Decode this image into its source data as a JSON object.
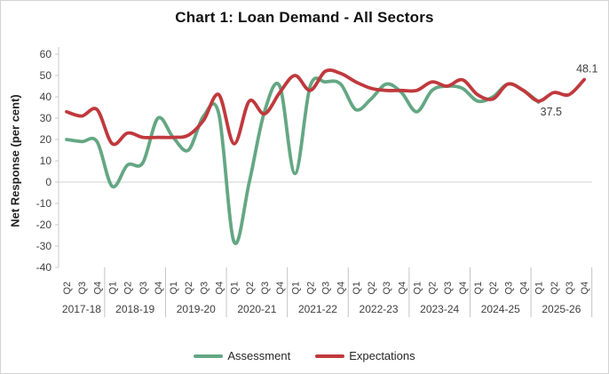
{
  "chart_data": {
    "type": "line",
    "title": "Chart 1: Loan Demand - All Sectors",
    "ylabel": "Net Response (per cent)",
    "ylim": [
      -40,
      60
    ],
    "y_ticks": [
      60,
      50,
      40,
      30,
      20,
      10,
      0,
      -10,
      -20,
      -30,
      -40
    ],
    "grid": "zero-line-only",
    "legend_position": "bottom",
    "x_quarter_labels": [
      "Q2",
      "Q3",
      "Q4",
      "Q1",
      "Q2",
      "Q3",
      "Q4",
      "Q1",
      "Q2",
      "Q3",
      "Q4",
      "Q1",
      "Q2",
      "Q3",
      "Q4",
      "Q1",
      "Q2",
      "Q3",
      "Q4",
      "Q1",
      "Q2",
      "Q3",
      "Q4",
      "Q1",
      "Q2",
      "Q3",
      "Q4",
      "Q1",
      "Q2",
      "Q3",
      "Q4",
      "Q1",
      "Q2",
      "Q3",
      "Q4"
    ],
    "x_year_groups": [
      {
        "label": "2017-18",
        "quarters": 3
      },
      {
        "label": "2018-19",
        "quarters": 4
      },
      {
        "label": "2019-20",
        "quarters": 4
      },
      {
        "label": "2020-21",
        "quarters": 4
      },
      {
        "label": "2021-22",
        "quarters": 4
      },
      {
        "label": "2022-23",
        "quarters": 4
      },
      {
        "label": "2023-24",
        "quarters": 4
      },
      {
        "label": "2024-25",
        "quarters": 4
      },
      {
        "label": "2025-26",
        "quarters": 4
      }
    ],
    "series": [
      {
        "name": "Assessment",
        "color": "#64a783",
        "end_label": "37.5",
        "values": [
          20,
          19,
          19,
          -2,
          8,
          9,
          30,
          21,
          15,
          31,
          32,
          -28,
          0,
          33,
          45,
          4,
          45,
          47,
          46,
          34,
          39,
          46,
          42,
          33,
          43,
          45,
          44,
          38,
          40,
          46,
          43,
          37.5
        ]
      },
      {
        "name": "Expectations",
        "color": "#c0393d",
        "end_label": "48.1",
        "values": [
          33,
          31,
          34,
          18,
          23,
          21,
          21,
          21,
          22,
          29,
          41,
          18,
          38,
          32,
          42,
          50,
          43,
          52,
          51,
          47,
          44,
          43,
          43,
          43,
          47,
          45,
          48,
          41,
          39,
          46,
          43,
          38,
          42,
          41,
          48.1
        ]
      }
    ]
  }
}
